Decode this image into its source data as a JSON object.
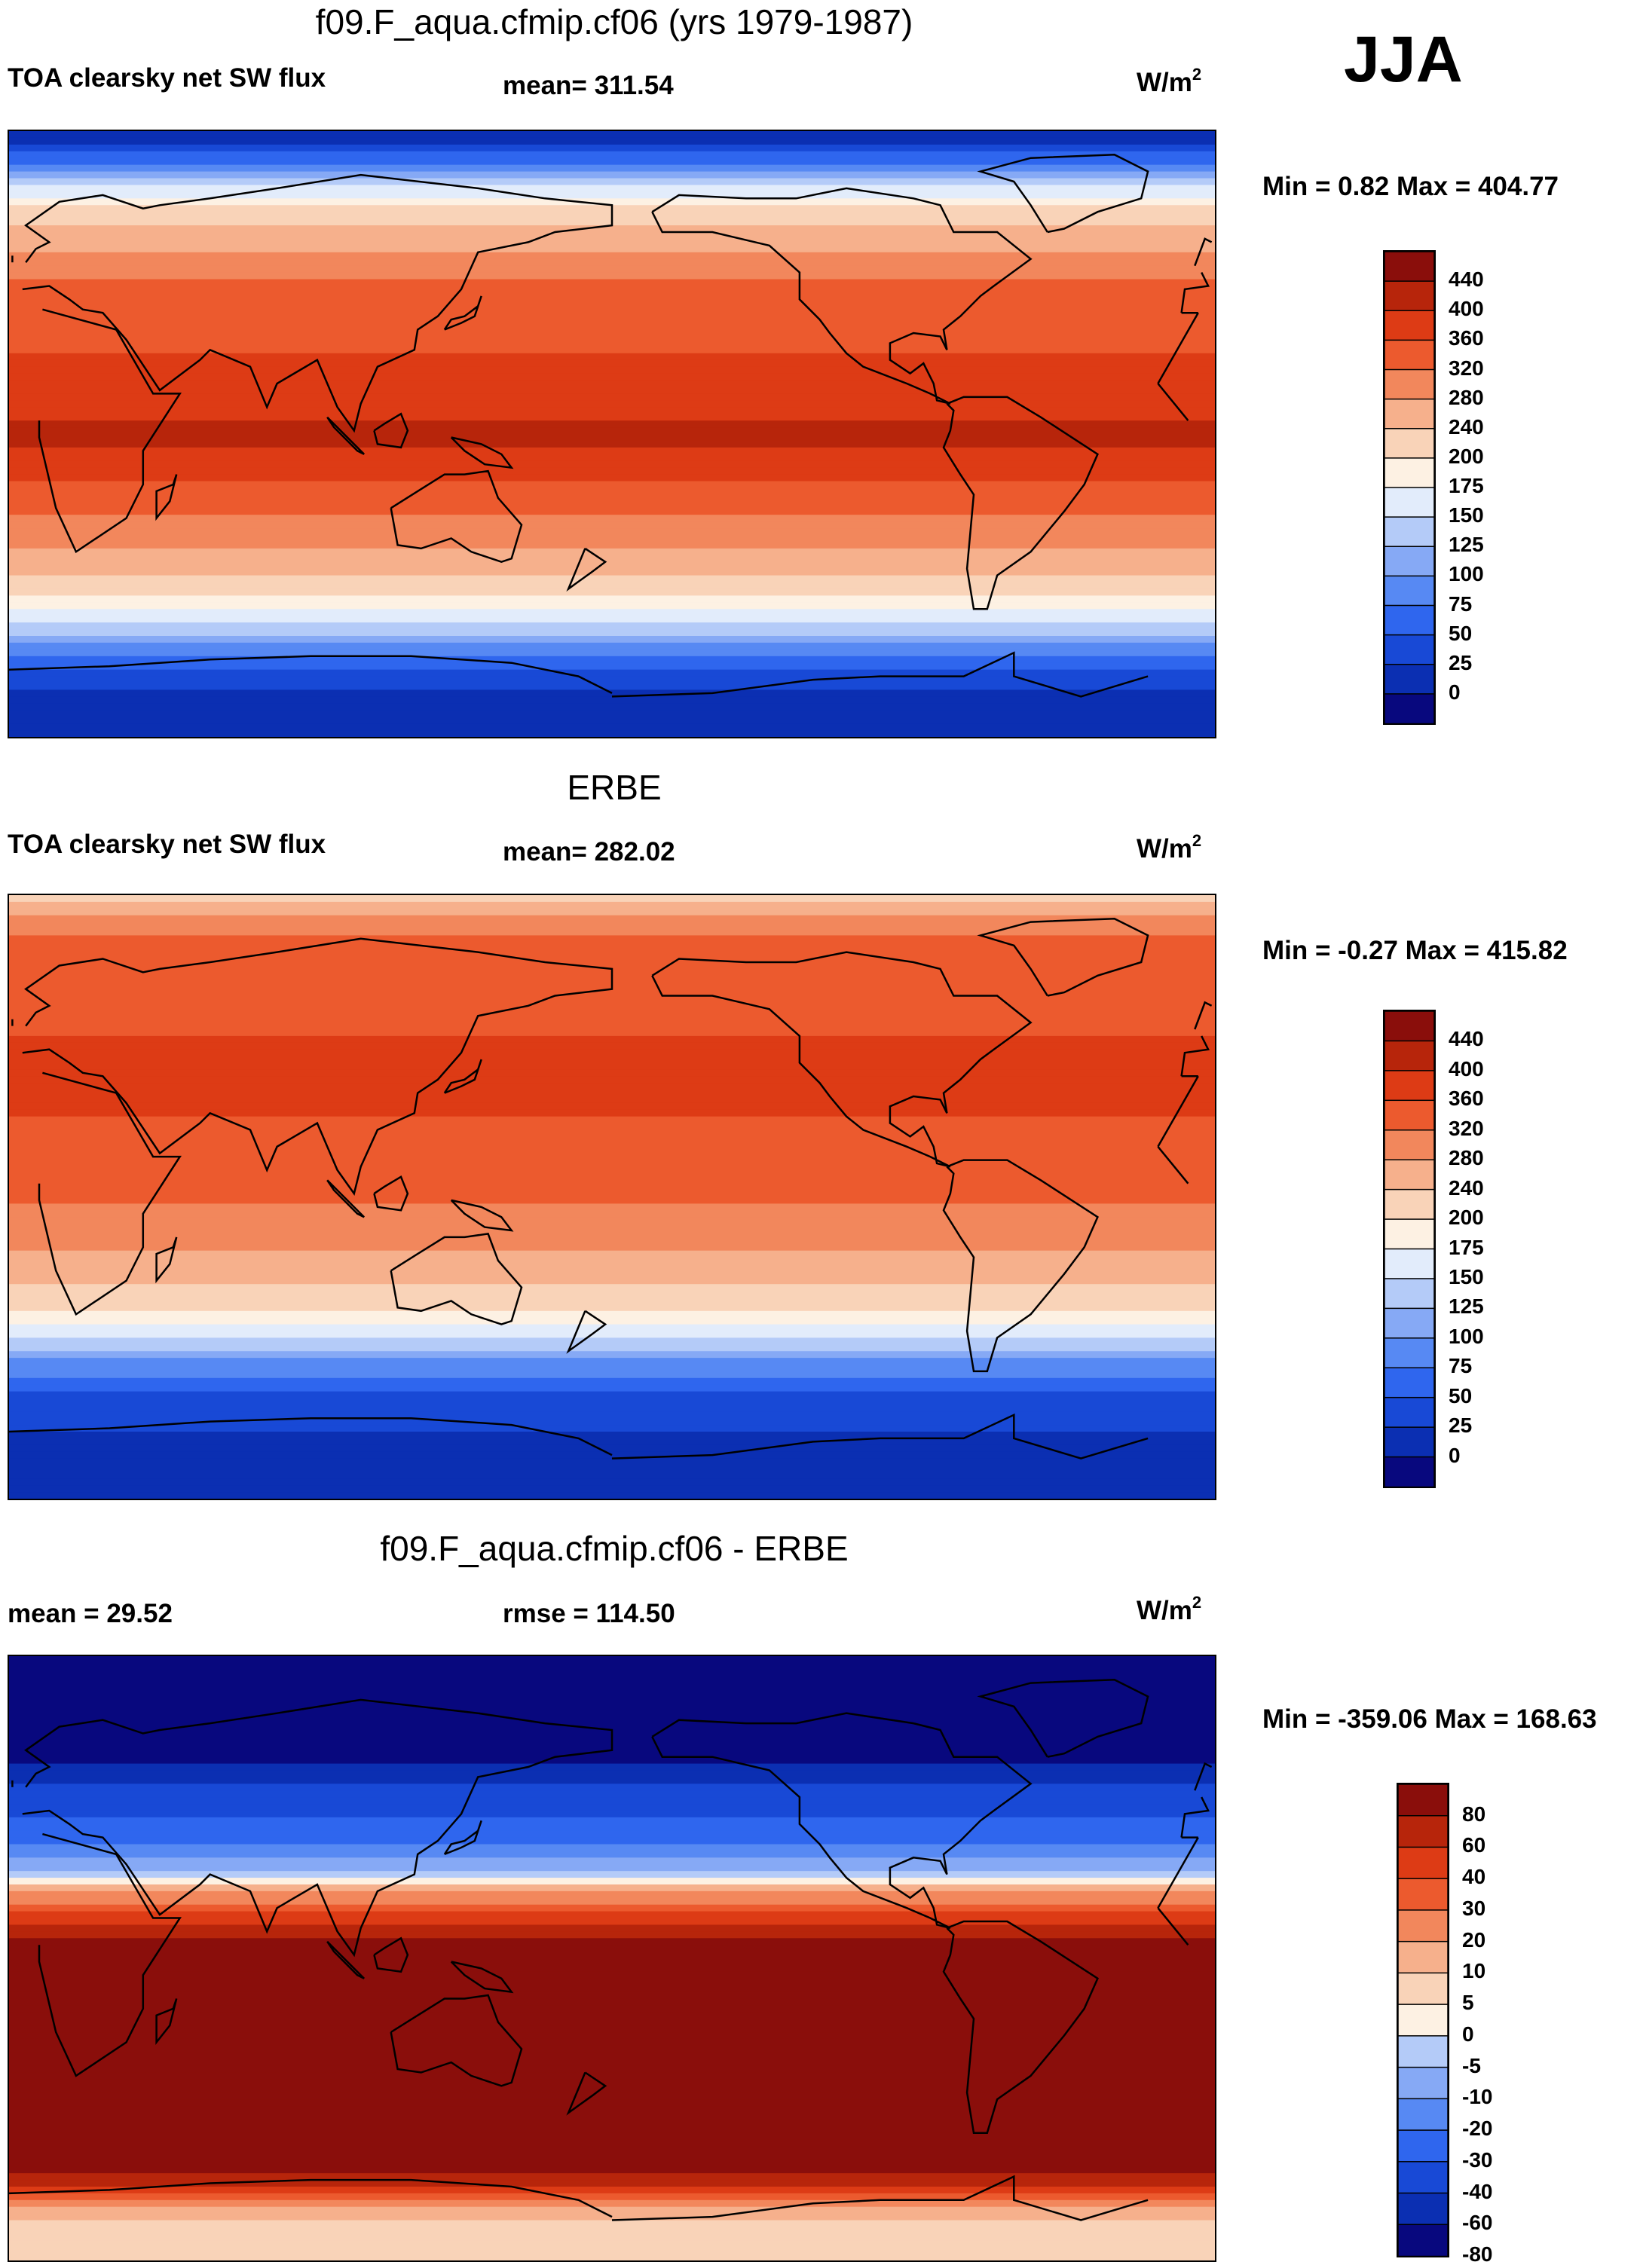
{
  "season": "JJA",
  "colors": {
    "abs_scale": [
      "#08087e",
      "#0b2fb2",
      "#1849d6",
      "#2f66ee",
      "#5789f3",
      "#86a9f5",
      "#b4cbf8",
      "#e2ecfb",
      "#fdf1e3",
      "#f9d3b8",
      "#f6b08c",
      "#f2875c",
      "#ec5a2e",
      "#dd3b15",
      "#b7250b",
      "#8a0e0b"
    ],
    "diff_scale": [
      "#08087e",
      "#0b2fb2",
      "#1849d6",
      "#2f66ee",
      "#5789f3",
      "#86a9f5",
      "#b4cbf8",
      "#fdf1e3",
      "#f9d3b8",
      "#f6b08c",
      "#f2875c",
      "#ec5a2e",
      "#dd3b15",
      "#b7250b",
      "#8a0e0b"
    ],
    "missing": "#ffffff"
  },
  "chart_data": [
    {
      "type": "heatmap",
      "panel": "model",
      "title": "f09.F_aqua.cfmip.cf06 (yrs 1979-1987)",
      "variable_label": "TOA clearsky net SW flux",
      "stat_label": "mean= 311.54",
      "units_base": "W/m",
      "units_exp": "2",
      "minmax_label": "Min =   0.82 Max = 404.77",
      "min": 0.82,
      "max": 404.77,
      "mean": 311.54,
      "colorbar_ticks": [
        "440",
        "400",
        "360",
        "320",
        "280",
        "240",
        "200",
        "175",
        "150",
        "125",
        "100",
        "75",
        "50",
        "25",
        "0"
      ],
      "latitude_profile": {
        "lat": [
          90,
          84,
          78,
          72,
          66,
          60,
          54,
          48,
          42,
          36,
          30,
          24,
          18,
          12,
          6,
          0,
          -6,
          -12,
          -18,
          -24,
          -30,
          -36,
          -42,
          -48,
          -54,
          -60,
          -66,
          -72,
          -78,
          -84,
          -90
        ],
        "value": [
          0,
          40,
          100,
          160,
          210,
          250,
          285,
          310,
          330,
          345,
          355,
          360,
          365,
          380,
          395,
          405,
          395,
          370,
          345,
          320,
          300,
          275,
          245,
          205,
          165,
          120,
          75,
          35,
          15,
          5,
          0
        ]
      }
    },
    {
      "type": "heatmap",
      "panel": "obs",
      "title": "ERBE",
      "variable_label": "TOA clearsky net SW flux",
      "stat_label": "mean= 282.02",
      "units_base": "W/m",
      "units_exp": "2",
      "minmax_label": "Min =  -0.27 Max = 415.82",
      "min": -0.27,
      "max": 415.82,
      "mean": 282.02,
      "colorbar_ticks": [
        "440",
        "400",
        "360",
        "320",
        "280",
        "240",
        "200",
        "175",
        "150",
        "125",
        "100",
        "75",
        "50",
        "25",
        "0"
      ],
      "latitude_profile": {
        "lat": [
          90,
          84,
          78,
          72,
          66,
          60,
          54,
          48,
          42,
          36,
          30,
          24,
          18,
          12,
          6,
          0,
          -6,
          -12,
          -18,
          -24,
          -30,
          -36,
          -42,
          -48,
          -54,
          -60,
          -66,
          -72,
          -78,
          -84,
          -90
        ],
        "value": [
          200,
          290,
          320,
          335,
          340,
          345,
          350,
          360,
          370,
          380,
          375,
          360,
          350,
          345,
          335,
          325,
          310,
          290,
          270,
          245,
          220,
          190,
          150,
          105,
          70,
          45,
          30,
          20,
          12,
          5,
          0
        ]
      }
    },
    {
      "type": "heatmap",
      "panel": "difference",
      "title": "f09.F_aqua.cfmip.cf06 - ERBE",
      "stat_label_left": "mean =  29.52",
      "stat_label": "rmse = 114.50",
      "units_base": "W/m",
      "units_exp": "2",
      "minmax_label": "Min = -359.06 Max = 168.63",
      "min": -359.06,
      "max": 168.63,
      "mean": 29.52,
      "rmse": 114.5,
      "colorbar_ticks": [
        "80",
        "60",
        "40",
        "30",
        "20",
        "10",
        "5",
        "0",
        "-5",
        "-10",
        "-20",
        "-30",
        "-40",
        "-60",
        "-80"
      ],
      "latitude_profile": {
        "lat": [
          90,
          84,
          78,
          72,
          66,
          60,
          54,
          48,
          42,
          36,
          30,
          24,
          18,
          12,
          6,
          0,
          -6,
          -12,
          -18,
          -24,
          -30,
          -36,
          -42,
          -48,
          -54,
          -60,
          -66,
          -72,
          -78,
          -84,
          -90
        ],
        "value": [
          -200,
          -250,
          -220,
          -175,
          -130,
          -95,
          -65,
          -50,
          -40,
          -35,
          -20,
          -5,
          15,
          35,
          60,
          80,
          85,
          80,
          75,
          75,
          80,
          85,
          95,
          100,
          95,
          75,
          45,
          15,
          3,
          0,
          0
        ]
      }
    }
  ]
}
